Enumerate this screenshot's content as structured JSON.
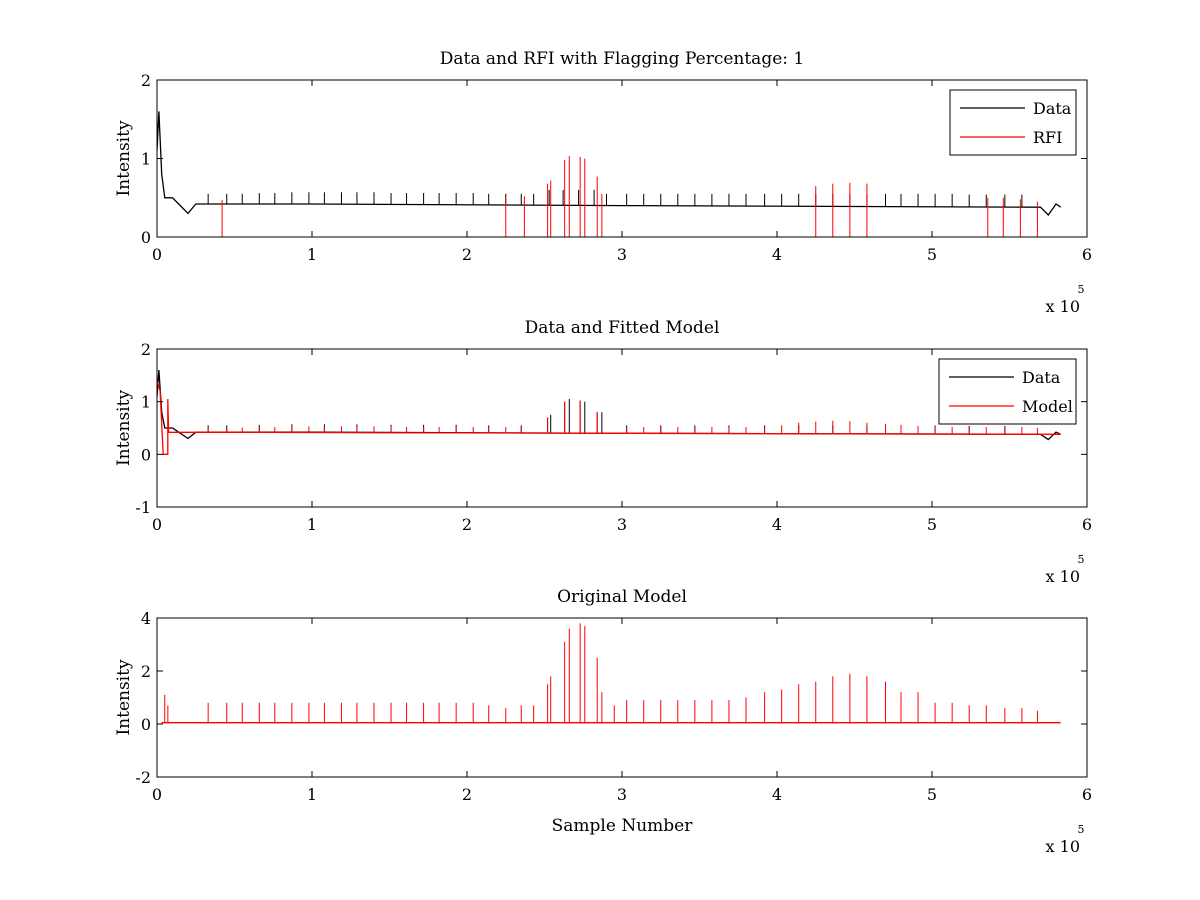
{
  "colors": {
    "data": "#000000",
    "rfi": "#ff0000",
    "model": "#ff0000",
    "background": "#ffffff",
    "axes": "#000000"
  },
  "chart_data": [
    {
      "type": "line",
      "title": "Data and RFI with Flagging Percentage: 1",
      "xlabel": "",
      "ylabel": "Intensity",
      "xlim": [
        0,
        6
      ],
      "ylim": [
        0,
        2
      ],
      "xticks": [
        "0",
        "1",
        "2",
        "3",
        "4",
        "5",
        "6"
      ],
      "yticks": [
        "0",
        "1",
        "2"
      ],
      "x_exponent": {
        "base": "x 10",
        "power": "5"
      },
      "grid": false,
      "legend_position": "top-right",
      "series": [
        {
          "name": "Data",
          "color": "#000000",
          "baseline": [
            [
              0,
              1.1
            ],
            [
              0.012,
              1.6
            ],
            [
              0.03,
              0.8
            ],
            [
              0.05,
              0.5
            ],
            [
              0.1,
              0.5
            ],
            [
              0.14,
              0.42
            ],
            [
              0.2,
              0.3
            ],
            [
              0.25,
              0.42
            ],
            [
              1,
              0.42
            ],
            [
              3,
              0.4
            ],
            [
              5.7,
              0.38
            ],
            [
              5.75,
              0.28
            ],
            [
              5.8,
              0.42
            ],
            [
              5.83,
              0.38
            ]
          ],
          "spikes": [
            [
              0.33,
              0.55
            ],
            [
              0.45,
              0.55
            ],
            [
              0.55,
              0.55
            ],
            [
              0.66,
              0.56
            ],
            [
              0.76,
              0.56
            ],
            [
              0.87,
              0.57
            ],
            [
              0.98,
              0.57
            ],
            [
              1.08,
              0.57
            ],
            [
              1.19,
              0.57
            ],
            [
              1.29,
              0.57
            ],
            [
              1.4,
              0.57
            ],
            [
              1.51,
              0.56
            ],
            [
              1.61,
              0.56
            ],
            [
              1.72,
              0.56
            ],
            [
              1.82,
              0.56
            ],
            [
              1.93,
              0.56
            ],
            [
              2.04,
              0.56
            ],
            [
              2.14,
              0.55
            ],
            [
              2.25,
              0.55
            ],
            [
              2.35,
              0.55
            ],
            [
              2.43,
              0.55
            ],
            [
              2.53,
              0.6
            ],
            [
              2.62,
              0.6
            ],
            [
              2.72,
              0.6
            ],
            [
              2.82,
              0.6
            ],
            [
              2.9,
              0.55
            ],
            [
              3.03,
              0.55
            ],
            [
              3.14,
              0.55
            ],
            [
              3.25,
              0.55
            ],
            [
              3.36,
              0.55
            ],
            [
              3.47,
              0.55
            ],
            [
              3.58,
              0.55
            ],
            [
              3.69,
              0.55
            ],
            [
              3.8,
              0.55
            ],
            [
              3.92,
              0.55
            ],
            [
              4.03,
              0.55
            ],
            [
              4.14,
              0.55
            ],
            [
              4.25,
              0.55
            ],
            [
              4.36,
              0.55
            ],
            [
              4.47,
              0.55
            ],
            [
              4.58,
              0.55
            ],
            [
              4.7,
              0.55
            ],
            [
              4.8,
              0.55
            ],
            [
              4.91,
              0.55
            ],
            [
              5.02,
              0.55
            ],
            [
              5.13,
              0.55
            ],
            [
              5.24,
              0.54
            ],
            [
              5.35,
              0.54
            ],
            [
              5.47,
              0.54
            ],
            [
              5.58,
              0.54
            ]
          ]
        },
        {
          "name": "RFI",
          "color": "#ff0000",
          "spikes": [
            [
              0.42,
              0.47
            ],
            [
              2.25,
              0.5
            ],
            [
              2.37,
              0.52
            ],
            [
              2.52,
              0.68
            ],
            [
              2.54,
              0.72
            ],
            [
              2.63,
              0.98
            ],
            [
              2.66,
              1.03
            ],
            [
              2.73,
              1.02
            ],
            [
              2.76,
              1.0
            ],
            [
              2.84,
              0.77
            ],
            [
              2.87,
              0.55
            ],
            [
              4.25,
              0.65
            ],
            [
              4.36,
              0.68
            ],
            [
              4.47,
              0.69
            ],
            [
              4.58,
              0.68
            ],
            [
              5.36,
              0.5
            ],
            [
              5.46,
              0.5
            ],
            [
              5.57,
              0.48
            ],
            [
              5.68,
              0.45
            ]
          ]
        }
      ]
    },
    {
      "type": "line",
      "title": "Data and Fitted Model",
      "xlabel": "",
      "ylabel": "Intensity",
      "xlim": [
        0,
        6
      ],
      "ylim": [
        -1,
        2
      ],
      "xticks": [
        "0",
        "1",
        "2",
        "3",
        "4",
        "5",
        "6"
      ],
      "yticks": [
        "-1",
        "0",
        "1",
        "2"
      ],
      "x_exponent": {
        "base": "x 10",
        "power": "5"
      },
      "grid": false,
      "legend_position": "top-right",
      "series": [
        {
          "name": "Data",
          "color": "#000000",
          "baseline": [
            [
              0,
              1.1
            ],
            [
              0.012,
              1.6
            ],
            [
              0.03,
              0.8
            ],
            [
              0.05,
              0.5
            ],
            [
              0.1,
              0.5
            ],
            [
              0.14,
              0.42
            ],
            [
              0.2,
              0.3
            ],
            [
              0.25,
              0.42
            ],
            [
              1,
              0.42
            ],
            [
              3,
              0.4
            ],
            [
              5.7,
              0.38
            ],
            [
              5.75,
              0.28
            ],
            [
              5.8,
              0.42
            ],
            [
              5.83,
              0.38
            ]
          ],
          "spikes": [
            [
              0.33,
              0.55
            ],
            [
              0.45,
              0.55
            ],
            [
              0.66,
              0.56
            ],
            [
              0.87,
              0.57
            ],
            [
              1.08,
              0.57
            ],
            [
              1.29,
              0.57
            ],
            [
              1.51,
              0.56
            ],
            [
              1.72,
              0.56
            ],
            [
              1.93,
              0.56
            ],
            [
              2.14,
              0.55
            ],
            [
              2.35,
              0.55
            ],
            [
              2.52,
              0.7
            ],
            [
              2.54,
              0.75
            ],
            [
              2.63,
              1.0
            ],
            [
              2.66,
              1.05
            ],
            [
              2.73,
              1.02
            ],
            [
              2.76,
              1.0
            ],
            [
              2.84,
              0.8
            ],
            [
              2.87,
              0.8
            ],
            [
              3.03,
              0.55
            ],
            [
              3.25,
              0.55
            ],
            [
              3.47,
              0.55
            ],
            [
              3.69,
              0.55
            ],
            [
              3.92,
              0.55
            ],
            [
              4.14,
              0.55
            ],
            [
              4.36,
              0.55
            ],
            [
              4.58,
              0.55
            ],
            [
              4.8,
              0.55
            ],
            [
              5.02,
              0.55
            ],
            [
              5.24,
              0.54
            ],
            [
              5.47,
              0.54
            ]
          ]
        },
        {
          "name": "Model",
          "color": "#ff0000",
          "baseline": [
            [
              0,
              1.4
            ],
            [
              0.02,
              1.2
            ],
            [
              0.04,
              0.0
            ],
            [
              0.07,
              0.0
            ],
            [
              0.07,
              1.05
            ],
            [
              0.075,
              0.42
            ],
            [
              3,
              0.4
            ],
            [
              5.83,
              0.38
            ]
          ],
          "spikes": [
            [
              0.33,
              0.5
            ],
            [
              0.45,
              0.51
            ],
            [
              0.55,
              0.51
            ],
            [
              0.66,
              0.52
            ],
            [
              0.76,
              0.52
            ],
            [
              0.87,
              0.53
            ],
            [
              0.98,
              0.53
            ],
            [
              1.08,
              0.53
            ],
            [
              1.19,
              0.53
            ],
            [
              1.29,
              0.53
            ],
            [
              1.4,
              0.53
            ],
            [
              1.51,
              0.53
            ],
            [
              1.61,
              0.52
            ],
            [
              1.72,
              0.52
            ],
            [
              1.82,
              0.52
            ],
            [
              1.93,
              0.52
            ],
            [
              2.04,
              0.52
            ],
            [
              2.14,
              0.52
            ],
            [
              2.25,
              0.52
            ],
            [
              2.35,
              0.52
            ],
            [
              2.52,
              0.7
            ],
            [
              2.63,
              1.0
            ],
            [
              2.73,
              1.02
            ],
            [
              2.84,
              0.8
            ],
            [
              3.03,
              0.52
            ],
            [
              3.14,
              0.52
            ],
            [
              3.25,
              0.52
            ],
            [
              3.36,
              0.52
            ],
            [
              3.47,
              0.52
            ],
            [
              3.58,
              0.52
            ],
            [
              3.69,
              0.52
            ],
            [
              3.8,
              0.52
            ],
            [
              3.92,
              0.53
            ],
            [
              4.03,
              0.55
            ],
            [
              4.14,
              0.6
            ],
            [
              4.25,
              0.62
            ],
            [
              4.36,
              0.64
            ],
            [
              4.47,
              0.63
            ],
            [
              4.58,
              0.6
            ],
            [
              4.7,
              0.58
            ],
            [
              4.8,
              0.56
            ],
            [
              4.91,
              0.54
            ],
            [
              5.02,
              0.53
            ],
            [
              5.13,
              0.52
            ],
            [
              5.24,
              0.52
            ],
            [
              5.35,
              0.52
            ],
            [
              5.47,
              0.52
            ],
            [
              5.58,
              0.52
            ],
            [
              5.68,
              0.5
            ]
          ]
        }
      ]
    },
    {
      "type": "line",
      "title": "Original Model",
      "xlabel": "Sample Number",
      "ylabel": "Intensity",
      "xlim": [
        0,
        6
      ],
      "ylim": [
        -2,
        4
      ],
      "xticks": [
        "0",
        "1",
        "2",
        "3",
        "4",
        "5",
        "6"
      ],
      "yticks": [
        "-2",
        "0",
        "2",
        "4"
      ],
      "x_exponent": {
        "base": "x 10",
        "power": "5"
      },
      "grid": false,
      "series": [
        {
          "color": "#ff0000",
          "baseline": [
            [
              0.03,
              0.05
            ],
            [
              5.83,
              0.05
            ]
          ],
          "spikes": [
            [
              0.05,
              1.1
            ],
            [
              0.07,
              0.7
            ],
            [
              0.33,
              0.8
            ],
            [
              0.45,
              0.8
            ],
            [
              0.55,
              0.8
            ],
            [
              0.66,
              0.8
            ],
            [
              0.76,
              0.8
            ],
            [
              0.87,
              0.8
            ],
            [
              0.98,
              0.8
            ],
            [
              1.08,
              0.8
            ],
            [
              1.19,
              0.8
            ],
            [
              1.29,
              0.8
            ],
            [
              1.4,
              0.8
            ],
            [
              1.51,
              0.8
            ],
            [
              1.61,
              0.8
            ],
            [
              1.72,
              0.8
            ],
            [
              1.82,
              0.8
            ],
            [
              1.93,
              0.8
            ],
            [
              2.04,
              0.8
            ],
            [
              2.14,
              0.7
            ],
            [
              2.25,
              0.6
            ],
            [
              2.35,
              0.7
            ],
            [
              2.43,
              0.7
            ],
            [
              2.52,
              1.5
            ],
            [
              2.54,
              1.8
            ],
            [
              2.63,
              3.1
            ],
            [
              2.66,
              3.6
            ],
            [
              2.73,
              3.8
            ],
            [
              2.76,
              3.7
            ],
            [
              2.84,
              2.5
            ],
            [
              2.87,
              1.2
            ],
            [
              2.95,
              0.7
            ],
            [
              3.03,
              0.9
            ],
            [
              3.14,
              0.9
            ],
            [
              3.25,
              0.9
            ],
            [
              3.36,
              0.9
            ],
            [
              3.47,
              0.9
            ],
            [
              3.58,
              0.9
            ],
            [
              3.69,
              0.9
            ],
            [
              3.8,
              1.0
            ],
            [
              3.92,
              1.2
            ],
            [
              4.03,
              1.3
            ],
            [
              4.14,
              1.5
            ],
            [
              4.25,
              1.6
            ],
            [
              4.36,
              1.8
            ],
            [
              4.47,
              1.9
            ],
            [
              4.58,
              1.8
            ],
            [
              4.7,
              1.6
            ],
            [
              4.8,
              1.2
            ],
            [
              4.91,
              1.2
            ],
            [
              5.02,
              0.8
            ],
            [
              5.13,
              0.8
            ],
            [
              5.24,
              0.7
            ],
            [
              5.35,
              0.7
            ],
            [
              5.47,
              0.6
            ],
            [
              5.58,
              0.6
            ],
            [
              5.68,
              0.5
            ]
          ]
        }
      ]
    }
  ]
}
